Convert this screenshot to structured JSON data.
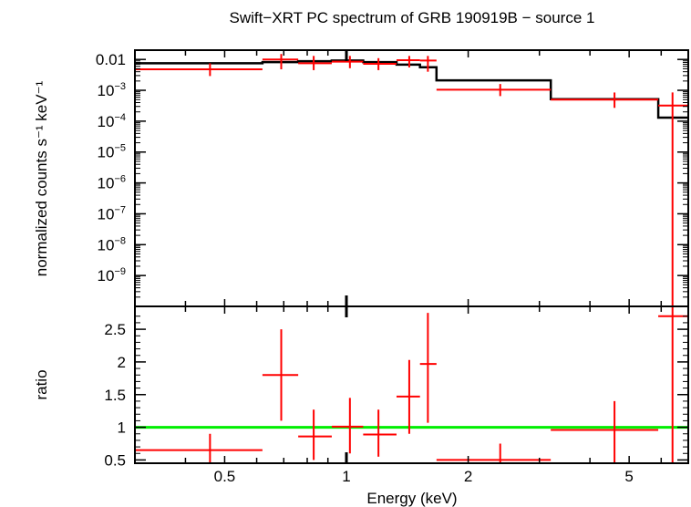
{
  "chart_data": [
    {
      "type": "scatter",
      "panel": "spectrum",
      "title": "Swift−XRT PC spectrum of GRB 190919B − source 1",
      "ylabel": "normalized counts s⁻¹ keV⁻¹",
      "xlabel": "Energy (keV)",
      "x_scale": "log",
      "y_scale": "log",
      "xlim": [
        0.3,
        7.0
      ],
      "ylim": [
        1e-10,
        0.02
      ],
      "y_ticks": [
        {
          "value": 0.01,
          "label": "0.01",
          "sup": ""
        },
        {
          "value": 0.001,
          "label": "10",
          "sup": "−3"
        },
        {
          "value": 0.0001,
          "label": "10",
          "sup": "−4"
        },
        {
          "value": 1e-05,
          "label": "10",
          "sup": "−5"
        },
        {
          "value": 1e-06,
          "label": "10",
          "sup": "−6"
        },
        {
          "value": 1e-07,
          "label": "10",
          "sup": "−7"
        },
        {
          "value": 1e-08,
          "label": "10",
          "sup": "−8"
        },
        {
          "value": 1e-09,
          "label": "10",
          "sup": "−9"
        }
      ],
      "series": [
        {
          "kind": "data",
          "color": "#ff0000",
          "points": [
            {
              "x": 0.46,
              "xlo": 0.3,
              "xhi": 0.62,
              "y": 0.0048,
              "ylo": 0.0029,
              "yhi": 0.0075
            },
            {
              "x": 0.69,
              "xlo": 0.62,
              "xhi": 0.76,
              "y": 0.01,
              "ylo": 0.0048,
              "yhi": 0.015
            },
            {
              "x": 0.83,
              "xlo": 0.76,
              "xhi": 0.92,
              "y": 0.0075,
              "ylo": 0.0045,
              "yhi": 0.013
            },
            {
              "x": 1.02,
              "xlo": 0.92,
              "xhi": 1.1,
              "y": 0.0085,
              "ylo": 0.0052,
              "yhi": 0.013
            },
            {
              "x": 1.2,
              "xlo": 1.1,
              "xhi": 1.33,
              "y": 0.0072,
              "ylo": 0.0045,
              "yhi": 0.011
            },
            {
              "x": 1.43,
              "xlo": 1.33,
              "xhi": 1.52,
              "y": 0.0095,
              "ylo": 0.0055,
              "yhi": 0.013
            },
            {
              "x": 1.59,
              "xlo": 1.52,
              "xhi": 1.67,
              "y": 0.0092,
              "ylo": 0.004,
              "yhi": 0.013
            },
            {
              "x": 2.4,
              "xlo": 1.67,
              "xhi": 3.2,
              "y": 0.00105,
              "ylo": 0.00065,
              "yhi": 0.0016
            },
            {
              "x": 4.6,
              "xlo": 3.2,
              "xhi": 5.9,
              "y": 0.0005,
              "ylo": 0.00027,
              "yhi": 0.00085
            },
            {
              "x": 6.4,
              "xlo": 5.9,
              "xhi": 7.0,
              "y": 0.00032,
              "ylo": 1e-10,
              "yhi": 0.00085
            }
          ]
        },
        {
          "kind": "model",
          "color": "#000000",
          "steps": [
            {
              "xlo": 0.3,
              "xhi": 0.62,
              "y": 0.0075
            },
            {
              "xlo": 0.62,
              "xhi": 0.76,
              "y": 0.0082
            },
            {
              "xlo": 0.76,
              "xhi": 0.92,
              "y": 0.0088
            },
            {
              "xlo": 0.92,
              "xhi": 1.1,
              "y": 0.0092
            },
            {
              "xlo": 1.1,
              "xhi": 1.33,
              "y": 0.0082
            },
            {
              "xlo": 1.33,
              "xhi": 1.52,
              "y": 0.0068
            },
            {
              "xlo": 1.52,
              "xhi": 1.67,
              "y": 0.0056
            },
            {
              "xlo": 1.67,
              "xhi": 3.2,
              "y": 0.0021
            },
            {
              "xlo": 3.2,
              "xhi": 5.9,
              "y": 0.00052
            },
            {
              "xlo": 5.9,
              "xhi": 7.0,
              "y": 0.00013
            }
          ]
        }
      ]
    },
    {
      "type": "scatter",
      "panel": "ratio",
      "ylabel": "ratio",
      "xlabel": "Energy (keV)",
      "x_scale": "log",
      "xlim": [
        0.3,
        7.0
      ],
      "ylim": [
        0.45,
        2.85
      ],
      "x_ticks": [
        {
          "value": 0.5,
          "label": "0.5"
        },
        {
          "value": 1,
          "label": "1"
        },
        {
          "value": 2,
          "label": "2"
        },
        {
          "value": 5,
          "label": "5"
        }
      ],
      "y_ticks": [
        {
          "value": 0.5,
          "label": "0.5"
        },
        {
          "value": 1,
          "label": "1"
        },
        {
          "value": 1.5,
          "label": "1.5"
        },
        {
          "value": 2,
          "label": "2"
        },
        {
          "value": 2.5,
          "label": "2.5"
        }
      ],
      "reference_line": {
        "y": 1.0,
        "color": "#00ee00"
      },
      "series": [
        {
          "kind": "data",
          "color": "#ff0000",
          "points": [
            {
              "x": 0.46,
              "xlo": 0.3,
              "xhi": 0.62,
              "y": 0.65,
              "ylo": 0.45,
              "yhi": 0.9
            },
            {
              "x": 0.69,
              "xlo": 0.62,
              "xhi": 0.76,
              "y": 1.8,
              "ylo": 1.1,
              "yhi": 2.5
            },
            {
              "x": 0.83,
              "xlo": 0.76,
              "xhi": 0.92,
              "y": 0.86,
              "ylo": 0.5,
              "yhi": 1.27
            },
            {
              "x": 1.02,
              "xlo": 0.92,
              "xhi": 1.1,
              "y": 1.01,
              "ylo": 0.6,
              "yhi": 1.45
            },
            {
              "x": 1.2,
              "xlo": 1.1,
              "xhi": 1.33,
              "y": 0.89,
              "ylo": 0.55,
              "yhi": 1.27
            },
            {
              "x": 1.43,
              "xlo": 1.33,
              "xhi": 1.52,
              "y": 1.47,
              "ylo": 0.9,
              "yhi": 2.03
            },
            {
              "x": 1.59,
              "xlo": 1.52,
              "xhi": 1.67,
              "y": 1.97,
              "ylo": 1.07,
              "yhi": 2.75
            },
            {
              "x": 2.4,
              "xlo": 1.67,
              "xhi": 3.2,
              "y": 0.5,
              "ylo": 0.45,
              "yhi": 0.75
            },
            {
              "x": 4.6,
              "xlo": 3.2,
              "xhi": 5.9,
              "y": 0.96,
              "ylo": 0.45,
              "yhi": 1.4
            },
            {
              "x": 6.4,
              "xlo": 5.9,
              "xhi": 7.0,
              "y": 2.7,
              "ylo": 0.45,
              "yhi": 2.85
            }
          ]
        }
      ]
    }
  ]
}
